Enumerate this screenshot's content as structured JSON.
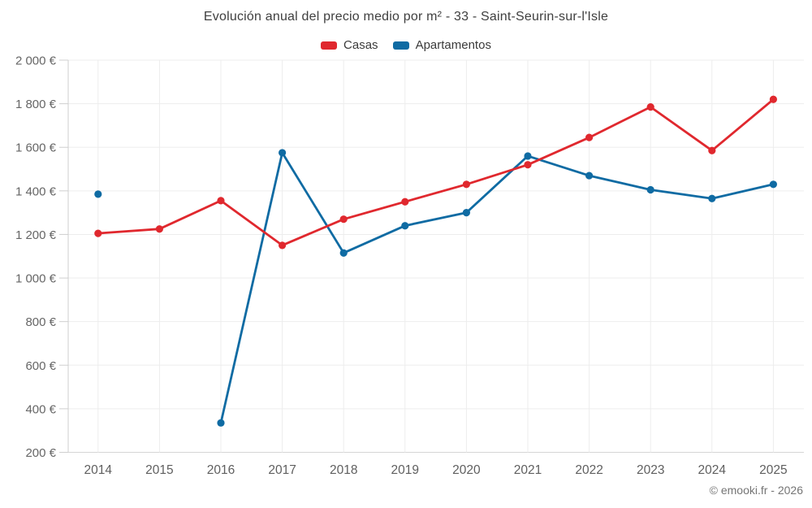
{
  "footer": {
    "credit": "© emooki.fr - 2026"
  },
  "chart_data": {
    "type": "line",
    "title": "Evolución anual del precio medio por m² - 33 - Saint-Seurin-sur-l'Isle",
    "unit": "€",
    "categories": [
      "2014",
      "2015",
      "2016",
      "2017",
      "2018",
      "2019",
      "2020",
      "2021",
      "2022",
      "2023",
      "2024",
      "2025"
    ],
    "series": [
      {
        "name": "Casas",
        "color": "#e0282e",
        "values": [
          1205,
          1225,
          1355,
          1150,
          1270,
          1350,
          1430,
          1520,
          1645,
          1785,
          1585,
          1820
        ]
      },
      {
        "name": "Apartamentos",
        "color": "#0f6ba3",
        "values": [
          1385,
          null,
          335,
          1575,
          1115,
          1240,
          1300,
          1560,
          1470,
          1405,
          1365,
          1430
        ]
      }
    ],
    "ylim": [
      200,
      2000
    ],
    "y_ticks": [
      {
        "value": 200,
        "label": "200 €"
      },
      {
        "value": 400,
        "label": "400 €"
      },
      {
        "value": 600,
        "label": "600 €"
      },
      {
        "value": 800,
        "label": "800 €"
      },
      {
        "value": 1000,
        "label": "1 000 €"
      },
      {
        "value": 1200,
        "label": "1 200 €"
      },
      {
        "value": 1400,
        "label": "1 400 €"
      },
      {
        "value": 1600,
        "label": "1 600 €"
      },
      {
        "value": 1800,
        "label": "1 800 €"
      },
      {
        "value": 2000,
        "label": "2 000 €"
      }
    ],
    "grid": true,
    "legend_position": "top"
  }
}
